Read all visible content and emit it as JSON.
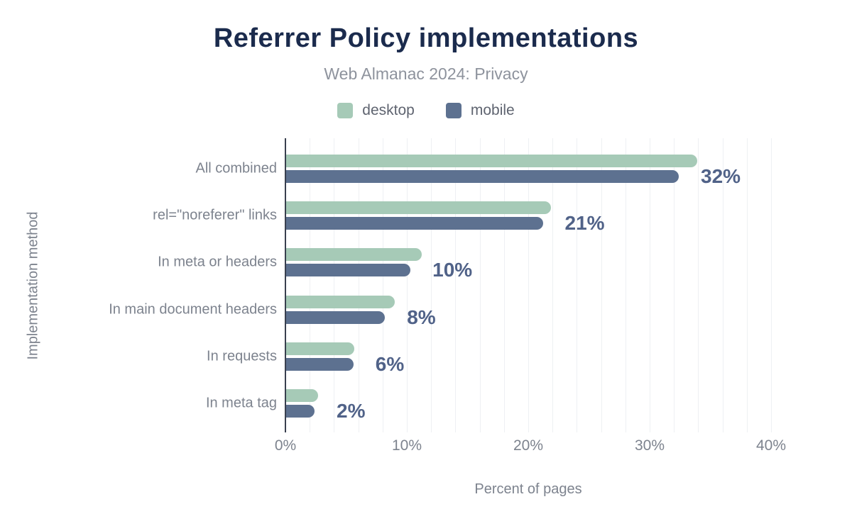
{
  "title": "Referrer Policy implementations",
  "subtitle": "Web Almanac 2024: Privacy",
  "legend": [
    {
      "label": "desktop",
      "color": "#a6cab7"
    },
    {
      "label": "mobile",
      "color": "#5d7190"
    }
  ],
  "colors": {
    "title": "#1b2b4d",
    "subtitle": "#8e939d",
    "legend_text": "#5f6470",
    "axis_text": "#7d838e",
    "value_label": "#506288",
    "axis_line": "#39404f",
    "gridline": "#eef0f3",
    "desktop_series": "#a6cab7",
    "mobile_series": "#5d7190"
  },
  "chart_data": {
    "type": "bar",
    "orientation": "horizontal",
    "title": "Referrer Policy implementations",
    "subtitle": "Web Almanac 2024: Privacy",
    "categories": [
      "All combined",
      "rel=\"noreferer\" links",
      "In meta or headers",
      "In main document headers",
      "In requests",
      "In meta tag"
    ],
    "series": [
      {
        "name": "desktop",
        "values": [
          33.9,
          21.9,
          11.2,
          9.0,
          5.7,
          2.7
        ]
      },
      {
        "name": "mobile",
        "values": [
          32.4,
          21.2,
          10.3,
          8.2,
          5.6,
          2.4
        ]
      }
    ],
    "value_labels": [
      "32%",
      "21%",
      "10%",
      "8%",
      "6%",
      "2%"
    ],
    "value_labels_series": "mobile",
    "xlabel": "Percent of pages",
    "ylabel": "Implementation method",
    "x_ticks": [
      "0%",
      "10%",
      "20%",
      "30%",
      "40%"
    ],
    "x_tick_values": [
      0,
      10,
      20,
      30,
      40
    ],
    "xlim": [
      0,
      40
    ],
    "grid": "vertical minor gridlines every 2%",
    "legend_position": "top center"
  }
}
